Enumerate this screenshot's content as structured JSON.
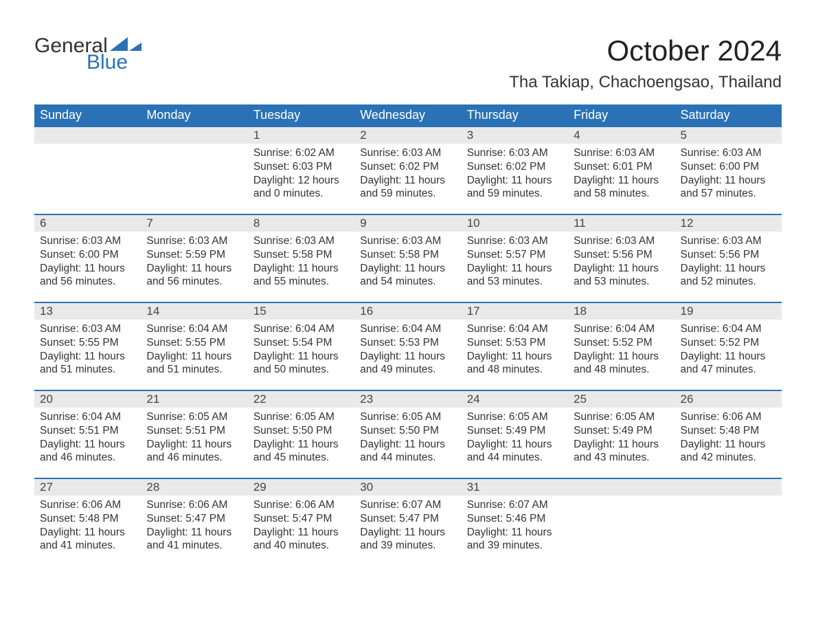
{
  "brand": {
    "part1": "General",
    "part2": "Blue",
    "text_color": "#333333",
    "accent_color": "#2a72b5"
  },
  "title": "October 2024",
  "location": "Tha Takiap, Chachoengsao, Thailand",
  "colors": {
    "header_bg": "#2a72b5",
    "header_fg": "#ffffff",
    "daybar_bg": "#e9e9e9",
    "daybar_border": "#2a72b5",
    "page_bg": "#ffffff",
    "text": "#333333"
  },
  "typography": {
    "title_fontsize": 42,
    "location_fontsize": 24,
    "header_fontsize": 18,
    "cell_fontsize": 15.5
  },
  "day_headers": [
    "Sunday",
    "Monday",
    "Tuesday",
    "Wednesday",
    "Thursday",
    "Friday",
    "Saturday"
  ],
  "weeks": [
    [
      null,
      null,
      {
        "n": "1",
        "sunrise": "Sunrise: 6:02 AM",
        "sunset": "Sunset: 6:03 PM",
        "dl1": "Daylight: 12 hours",
        "dl2": "and 0 minutes."
      },
      {
        "n": "2",
        "sunrise": "Sunrise: 6:03 AM",
        "sunset": "Sunset: 6:02 PM",
        "dl1": "Daylight: 11 hours",
        "dl2": "and 59 minutes."
      },
      {
        "n": "3",
        "sunrise": "Sunrise: 6:03 AM",
        "sunset": "Sunset: 6:02 PM",
        "dl1": "Daylight: 11 hours",
        "dl2": "and 59 minutes."
      },
      {
        "n": "4",
        "sunrise": "Sunrise: 6:03 AM",
        "sunset": "Sunset: 6:01 PM",
        "dl1": "Daylight: 11 hours",
        "dl2": "and 58 minutes."
      },
      {
        "n": "5",
        "sunrise": "Sunrise: 6:03 AM",
        "sunset": "Sunset: 6:00 PM",
        "dl1": "Daylight: 11 hours",
        "dl2": "and 57 minutes."
      }
    ],
    [
      {
        "n": "6",
        "sunrise": "Sunrise: 6:03 AM",
        "sunset": "Sunset: 6:00 PM",
        "dl1": "Daylight: 11 hours",
        "dl2": "and 56 minutes."
      },
      {
        "n": "7",
        "sunrise": "Sunrise: 6:03 AM",
        "sunset": "Sunset: 5:59 PM",
        "dl1": "Daylight: 11 hours",
        "dl2": "and 56 minutes."
      },
      {
        "n": "8",
        "sunrise": "Sunrise: 6:03 AM",
        "sunset": "Sunset: 5:58 PM",
        "dl1": "Daylight: 11 hours",
        "dl2": "and 55 minutes."
      },
      {
        "n": "9",
        "sunrise": "Sunrise: 6:03 AM",
        "sunset": "Sunset: 5:58 PM",
        "dl1": "Daylight: 11 hours",
        "dl2": "and 54 minutes."
      },
      {
        "n": "10",
        "sunrise": "Sunrise: 6:03 AM",
        "sunset": "Sunset: 5:57 PM",
        "dl1": "Daylight: 11 hours",
        "dl2": "and 53 minutes."
      },
      {
        "n": "11",
        "sunrise": "Sunrise: 6:03 AM",
        "sunset": "Sunset: 5:56 PM",
        "dl1": "Daylight: 11 hours",
        "dl2": "and 53 minutes."
      },
      {
        "n": "12",
        "sunrise": "Sunrise: 6:03 AM",
        "sunset": "Sunset: 5:56 PM",
        "dl1": "Daylight: 11 hours",
        "dl2": "and 52 minutes."
      }
    ],
    [
      {
        "n": "13",
        "sunrise": "Sunrise: 6:03 AM",
        "sunset": "Sunset: 5:55 PM",
        "dl1": "Daylight: 11 hours",
        "dl2": "and 51 minutes."
      },
      {
        "n": "14",
        "sunrise": "Sunrise: 6:04 AM",
        "sunset": "Sunset: 5:55 PM",
        "dl1": "Daylight: 11 hours",
        "dl2": "and 51 minutes."
      },
      {
        "n": "15",
        "sunrise": "Sunrise: 6:04 AM",
        "sunset": "Sunset: 5:54 PM",
        "dl1": "Daylight: 11 hours",
        "dl2": "and 50 minutes."
      },
      {
        "n": "16",
        "sunrise": "Sunrise: 6:04 AM",
        "sunset": "Sunset: 5:53 PM",
        "dl1": "Daylight: 11 hours",
        "dl2": "and 49 minutes."
      },
      {
        "n": "17",
        "sunrise": "Sunrise: 6:04 AM",
        "sunset": "Sunset: 5:53 PM",
        "dl1": "Daylight: 11 hours",
        "dl2": "and 48 minutes."
      },
      {
        "n": "18",
        "sunrise": "Sunrise: 6:04 AM",
        "sunset": "Sunset: 5:52 PM",
        "dl1": "Daylight: 11 hours",
        "dl2": "and 48 minutes."
      },
      {
        "n": "19",
        "sunrise": "Sunrise: 6:04 AM",
        "sunset": "Sunset: 5:52 PM",
        "dl1": "Daylight: 11 hours",
        "dl2": "and 47 minutes."
      }
    ],
    [
      {
        "n": "20",
        "sunrise": "Sunrise: 6:04 AM",
        "sunset": "Sunset: 5:51 PM",
        "dl1": "Daylight: 11 hours",
        "dl2": "and 46 minutes."
      },
      {
        "n": "21",
        "sunrise": "Sunrise: 6:05 AM",
        "sunset": "Sunset: 5:51 PM",
        "dl1": "Daylight: 11 hours",
        "dl2": "and 46 minutes."
      },
      {
        "n": "22",
        "sunrise": "Sunrise: 6:05 AM",
        "sunset": "Sunset: 5:50 PM",
        "dl1": "Daylight: 11 hours",
        "dl2": "and 45 minutes."
      },
      {
        "n": "23",
        "sunrise": "Sunrise: 6:05 AM",
        "sunset": "Sunset: 5:50 PM",
        "dl1": "Daylight: 11 hours",
        "dl2": "and 44 minutes."
      },
      {
        "n": "24",
        "sunrise": "Sunrise: 6:05 AM",
        "sunset": "Sunset: 5:49 PM",
        "dl1": "Daylight: 11 hours",
        "dl2": "and 44 minutes."
      },
      {
        "n": "25",
        "sunrise": "Sunrise: 6:05 AM",
        "sunset": "Sunset: 5:49 PM",
        "dl1": "Daylight: 11 hours",
        "dl2": "and 43 minutes."
      },
      {
        "n": "26",
        "sunrise": "Sunrise: 6:06 AM",
        "sunset": "Sunset: 5:48 PM",
        "dl1": "Daylight: 11 hours",
        "dl2": "and 42 minutes."
      }
    ],
    [
      {
        "n": "27",
        "sunrise": "Sunrise: 6:06 AM",
        "sunset": "Sunset: 5:48 PM",
        "dl1": "Daylight: 11 hours",
        "dl2": "and 41 minutes."
      },
      {
        "n": "28",
        "sunrise": "Sunrise: 6:06 AM",
        "sunset": "Sunset: 5:47 PM",
        "dl1": "Daylight: 11 hours",
        "dl2": "and 41 minutes."
      },
      {
        "n": "29",
        "sunrise": "Sunrise: 6:06 AM",
        "sunset": "Sunset: 5:47 PM",
        "dl1": "Daylight: 11 hours",
        "dl2": "and 40 minutes."
      },
      {
        "n": "30",
        "sunrise": "Sunrise: 6:07 AM",
        "sunset": "Sunset: 5:47 PM",
        "dl1": "Daylight: 11 hours",
        "dl2": "and 39 minutes."
      },
      {
        "n": "31",
        "sunrise": "Sunrise: 6:07 AM",
        "sunset": "Sunset: 5:46 PM",
        "dl1": "Daylight: 11 hours",
        "dl2": "and 39 minutes."
      },
      null,
      null
    ]
  ]
}
